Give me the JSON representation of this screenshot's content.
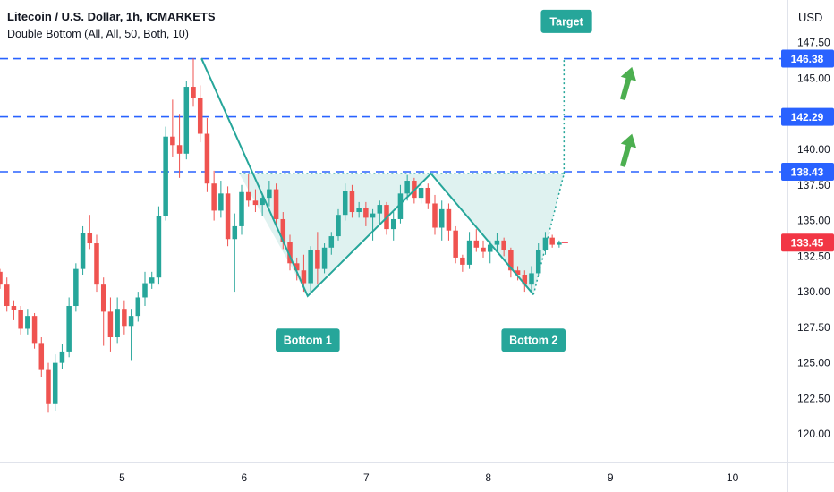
{
  "header": {
    "title": "Litecoin / U.S. Dollar, 1h, ICMARKETS",
    "indicator": "Double Bottom (All, All, 50, Both, 10)",
    "currency": "USD"
  },
  "colors": {
    "up": "#26a69a",
    "down": "#ef5350",
    "pattern": "#26a69a",
    "level_line": "#2962ff",
    "current_price": "#f23645",
    "arrow": "#4caf50"
  },
  "chart_data": {
    "type": "candlestick",
    "y_range": [
      118.0,
      150.5
    ],
    "y_ticks": [
      120.0,
      122.5,
      125.0,
      127.5,
      130.0,
      132.5,
      135.0,
      137.5,
      140.0,
      142.5,
      145.0,
      147.5
    ],
    "x_range": [
      4.0,
      10.45
    ],
    "x_ticks": [
      5,
      6,
      7,
      8,
      9,
      10
    ],
    "levels": [
      146.38,
      142.29,
      138.43
    ],
    "current_price": 133.45,
    "pattern_points": [
      {
        "x": 5.65,
        "y": 146.4
      },
      {
        "x": 6.52,
        "y": 129.7
      },
      {
        "x": 7.53,
        "y": 138.3
      },
      {
        "x": 8.37,
        "y": 129.8
      },
      {
        "x": 8.62,
        "y": 138.3
      }
    ],
    "target": 146.38,
    "annotations": [
      {
        "label": "Bottom 1",
        "x": 6.52,
        "y": 126.6
      },
      {
        "label": "Bottom 2",
        "x": 8.37,
        "y": 126.6
      },
      {
        "label": "Target",
        "x": 8.64,
        "y": 149.0
      }
    ],
    "candles": [
      [
        131.4,
        131.6,
        130.2,
        130.5
      ],
      [
        130.5,
        131.0,
        128.6,
        129.0
      ],
      [
        129.0,
        129.4,
        128.0,
        128.7
      ],
      [
        128.7,
        129.0,
        127.0,
        127.4
      ],
      [
        127.4,
        128.8,
        127.0,
        128.3
      ],
      [
        128.3,
        128.5,
        126.0,
        126.4
      ],
      [
        126.4,
        126.8,
        124.0,
        124.5
      ],
      [
        124.5,
        125.0,
        121.5,
        122.1
      ],
      [
        122.1,
        125.6,
        121.6,
        125.0
      ],
      [
        125.0,
        126.3,
        124.6,
        125.8
      ],
      [
        125.8,
        129.6,
        125.4,
        129.0
      ],
      [
        129.0,
        132.0,
        128.6,
        131.6
      ],
      [
        131.6,
        134.6,
        131.2,
        134.1
      ],
      [
        134.1,
        135.4,
        133.0,
        133.4
      ],
      [
        133.4,
        134.0,
        130.0,
        130.5
      ],
      [
        130.5,
        131.0,
        126.2,
        128.6
      ],
      [
        128.6,
        129.6,
        125.8,
        126.8
      ],
      [
        126.8,
        129.6,
        126.4,
        128.8
      ],
      [
        128.8,
        129.4,
        127.0,
        127.6
      ],
      [
        127.6,
        128.8,
        125.2,
        128.3
      ],
      [
        128.3,
        130.0,
        127.9,
        129.6
      ],
      [
        129.6,
        131.4,
        129.0,
        130.6
      ],
      [
        130.6,
        131.4,
        130.2,
        131.0
      ],
      [
        131.0,
        136.0,
        130.5,
        135.3
      ],
      [
        135.3,
        141.6,
        135.0,
        140.9
      ],
      [
        140.9,
        143.5,
        139.5,
        140.3
      ],
      [
        140.3,
        142.5,
        138.0,
        139.7
      ],
      [
        139.7,
        144.8,
        139.3,
        144.4
      ],
      [
        144.4,
        146.4,
        143.0,
        143.6
      ],
      [
        143.6,
        144.5,
        140.5,
        141.1
      ],
      [
        141.1,
        142.2,
        137.0,
        137.6
      ],
      [
        137.6,
        138.5,
        135.0,
        135.7
      ],
      [
        135.7,
        137.8,
        135.2,
        136.9
      ],
      [
        136.9,
        137.4,
        133.2,
        133.7
      ],
      [
        133.7,
        135.5,
        130.0,
        134.6
      ],
      [
        134.6,
        137.5,
        134.0,
        137.0
      ],
      [
        137.0,
        138.3,
        136.0,
        136.4
      ],
      [
        136.4,
        137.2,
        135.6,
        136.1
      ],
      [
        136.1,
        136.9,
        135.3,
        136.6
      ],
      [
        136.6,
        137.8,
        136.0,
        137.2
      ],
      [
        137.2,
        137.6,
        134.6,
        135.1
      ],
      [
        135.1,
        135.6,
        133.0,
        133.5
      ],
      [
        133.5,
        134.0,
        131.5,
        132.0
      ],
      [
        132.0,
        132.4,
        130.8,
        131.5
      ],
      [
        131.5,
        132.6,
        130.0,
        130.6
      ],
      [
        130.6,
        133.2,
        129.9,
        132.9
      ],
      [
        132.9,
        134.2,
        130.5,
        131.6
      ],
      [
        131.6,
        133.4,
        131.3,
        133.1
      ],
      [
        133.1,
        134.2,
        132.6,
        133.9
      ],
      [
        133.9,
        135.8,
        133.6,
        135.4
      ],
      [
        135.4,
        137.6,
        135.0,
        137.1
      ],
      [
        137.1,
        137.5,
        135.2,
        135.6
      ],
      [
        135.6,
        136.3,
        135.2,
        135.9
      ],
      [
        135.9,
        136.3,
        134.6,
        135.2
      ],
      [
        135.2,
        135.8,
        133.6,
        135.5
      ],
      [
        135.5,
        136.4,
        134.8,
        136.1
      ],
      [
        136.1,
        136.3,
        134.0,
        134.4
      ],
      [
        134.4,
        135.6,
        133.6,
        135.1
      ],
      [
        135.1,
        137.5,
        134.8,
        136.9
      ],
      [
        136.9,
        138.2,
        136.4,
        137.8
      ],
      [
        137.8,
        138.0,
        136.2,
        136.6
      ],
      [
        136.6,
        137.8,
        136.2,
        137.3
      ],
      [
        137.3,
        137.6,
        135.8,
        136.2
      ],
      [
        136.2,
        136.8,
        134.0,
        134.5
      ],
      [
        134.5,
        136.4,
        133.6,
        135.8
      ],
      [
        135.8,
        136.2,
        133.6,
        134.3
      ],
      [
        134.3,
        134.6,
        132.0,
        132.4
      ],
      [
        132.4,
        132.6,
        131.4,
        131.9
      ],
      [
        131.9,
        134.2,
        131.6,
        133.6
      ],
      [
        133.6,
        134.4,
        132.8,
        133.1
      ],
      [
        133.1,
        133.6,
        132.4,
        132.8
      ],
      [
        132.8,
        133.6,
        132.0,
        133.3
      ],
      [
        133.3,
        134.1,
        132.9,
        133.6
      ],
      [
        133.6,
        133.8,
        132.5,
        132.9
      ],
      [
        132.9,
        133.1,
        131.0,
        131.5
      ],
      [
        131.5,
        131.8,
        130.8,
        131.2
      ],
      [
        131.2,
        131.5,
        130.0,
        130.5
      ],
      [
        130.5,
        131.8,
        130.0,
        131.3
      ],
      [
        131.3,
        133.4,
        131.1,
        132.9
      ],
      [
        132.9,
        134.2,
        132.6,
        133.8
      ],
      [
        133.8,
        134.0,
        133.1,
        133.3
      ],
      [
        133.3,
        133.6,
        133.1,
        133.45
      ]
    ]
  }
}
